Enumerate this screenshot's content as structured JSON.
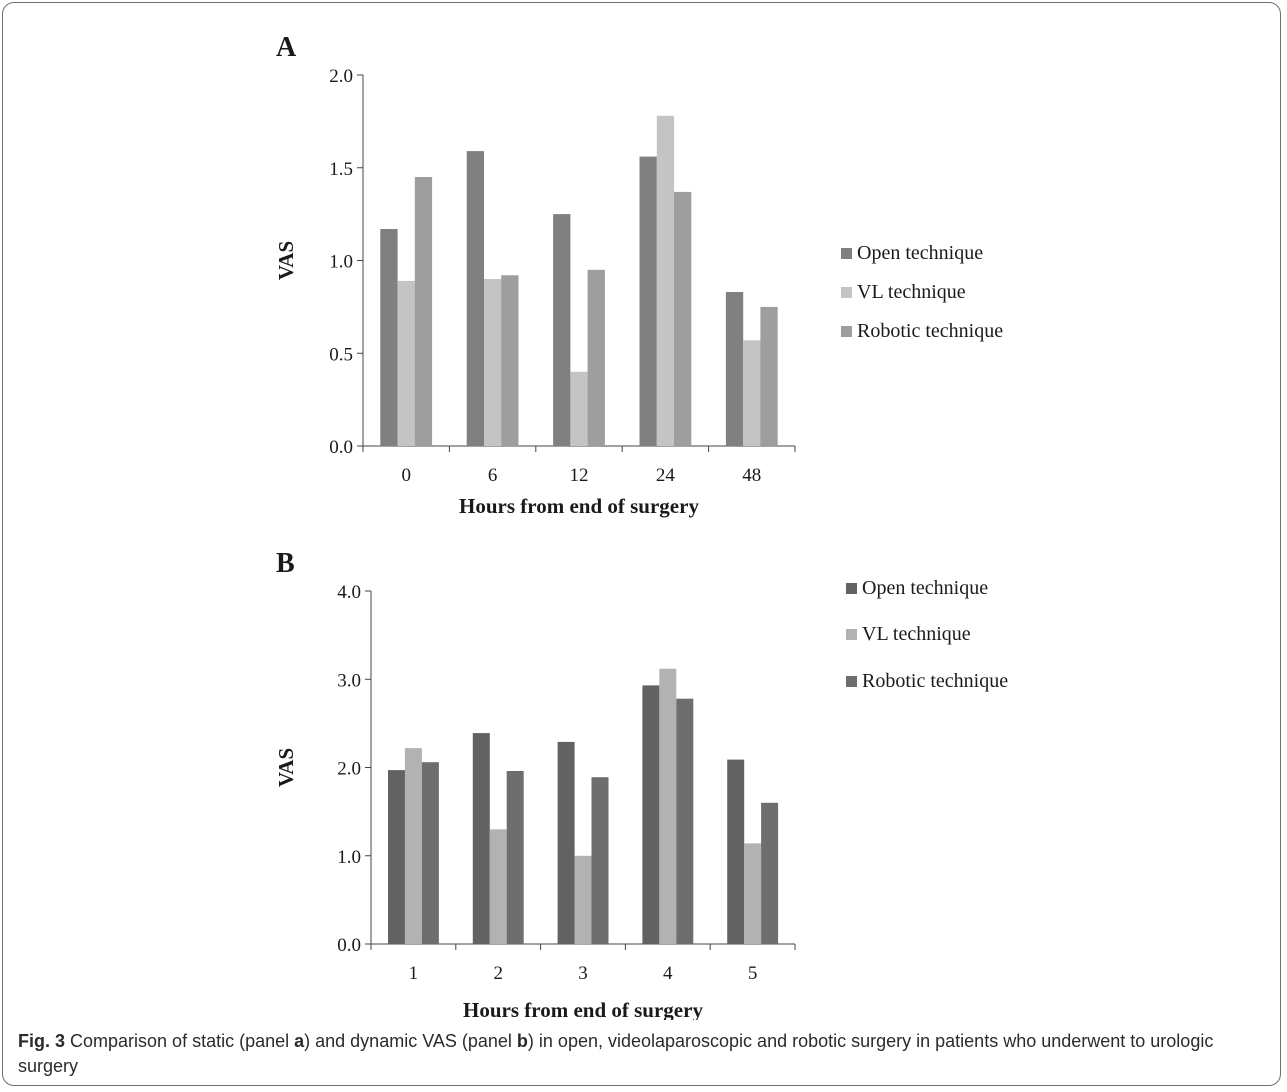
{
  "caption": {
    "fig_label": "Fig. 3",
    "text_1": " Comparison of static (panel ",
    "panel_a": "a",
    "text_2": ") and dynamic VAS (panel ",
    "panel_b": "b",
    "text_3": ") in open, videolaparoscopic and robotic surgery in patients who underwent to urologic surgery"
  },
  "chart_data": [
    {
      "panel": "A",
      "type": "bar",
      "xlabel": "Hours from end of surgery",
      "ylabel": "VAS",
      "categories": [
        "0",
        "6",
        "12",
        "24",
        "48"
      ],
      "ylim": [
        0,
        2
      ],
      "yticks": [
        "0.0",
        "0.5",
        "1.0",
        "1.5",
        "2.0"
      ],
      "grid": false,
      "legend_position": "right",
      "series": [
        {
          "name": "Open technique",
          "color": "#808080",
          "values": [
            1.17,
            1.59,
            1.25,
            1.56,
            0.83
          ]
        },
        {
          "name": "VL technique",
          "color": "#c4c4c4",
          "values": [
            0.89,
            0.9,
            0.4,
            1.78,
            0.57
          ]
        },
        {
          "name": "Robotic technique",
          "color": "#9e9e9e",
          "values": [
            1.45,
            0.92,
            0.95,
            1.37,
            0.75
          ]
        }
      ]
    },
    {
      "panel": "B",
      "type": "bar",
      "xlabel": "Hours from end of surgery",
      "ylabel": "VAS",
      "categories": [
        "1",
        "2",
        "3",
        "4",
        "5"
      ],
      "ylim": [
        0,
        4
      ],
      "yticks": [
        "0.0",
        "1.0",
        "2.0",
        "3.0",
        "4.0"
      ],
      "grid": false,
      "legend_position": "top-right",
      "series": [
        {
          "name": "Open technique",
          "color": "#626262",
          "values": [
            1.97,
            2.39,
            2.29,
            2.93,
            2.09
          ]
        },
        {
          "name": "VL technique",
          "color": "#b2b2b2",
          "values": [
            2.22,
            1.3,
            1.0,
            3.12,
            1.14
          ]
        },
        {
          "name": "Robotic technique",
          "color": "#6e6e6e",
          "values": [
            2.06,
            1.96,
            1.89,
            2.78,
            1.6
          ]
        }
      ]
    }
  ]
}
